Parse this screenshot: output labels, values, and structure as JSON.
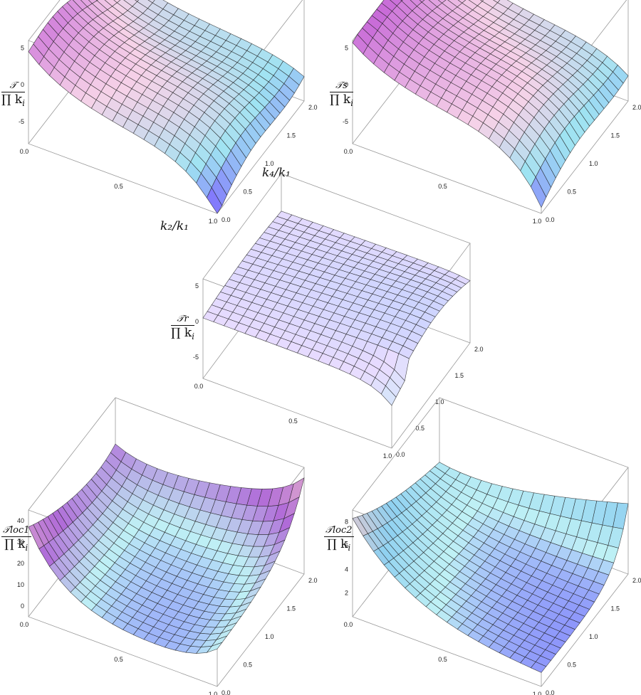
{
  "chart_data": [
    {
      "id": "T",
      "type": "surface3d",
      "zlabel_num": "𝒯",
      "zlabel_den": "∏ k",
      "zlabel_sub": "i",
      "xlabel": "k₂/k₁",
      "ylabel": "k₄/k₁",
      "x_ticks": [
        "0.0",
        "0.5",
        "1.0"
      ],
      "y_ticks": [
        "0.0",
        "0.5",
        "1.0",
        "1.5",
        "2.0"
      ],
      "z_ticks": [
        "5",
        "0",
        "-5"
      ],
      "xlim": [
        0,
        1
      ],
      "ylim": [
        0,
        2
      ],
      "zlim": [
        -8,
        6
      ],
      "colors": [
        "#7a5cff",
        "#c86bd8",
        "#9fe3f2",
        "#f6d2e8"
      ]
    },
    {
      "id": "Ts",
      "type": "surface3d",
      "zlabel_num": "𝒯s",
      "zlabel_den": "∏ k",
      "zlabel_sub": "i",
      "x_ticks": [
        "0.0",
        "0.5",
        "1.0"
      ],
      "y_ticks": [
        "0.0",
        "0.5",
        "1.0",
        "1.5",
        "2.0"
      ],
      "z_ticks": [
        "5",
        "0",
        "-5"
      ],
      "xlim": [
        0,
        1
      ],
      "ylim": [
        0,
        2
      ],
      "zlim": [
        -8,
        6
      ],
      "colors": [
        "#7a5cff",
        "#c86bd8",
        "#9fe3f2",
        "#f6d2e8"
      ]
    },
    {
      "id": "Tr",
      "type": "surface3d",
      "zlabel_num": "𝒯r",
      "zlabel_den": "∏ k",
      "zlabel_sub": "i",
      "x_ticks": [
        "0.0",
        "0.5",
        "1.0"
      ],
      "y_ticks": [
        "0.0",
        "0.5",
        "1.0",
        "1.5",
        "2.0"
      ],
      "z_ticks": [
        "5",
        "0",
        "-5"
      ],
      "xlim": [
        0,
        1
      ],
      "ylim": [
        0,
        2
      ],
      "zlim": [
        -8,
        6
      ],
      "colors": [
        "#6a63ff",
        "#9ec8ff",
        "#bff1f5",
        "#e9dcff"
      ]
    },
    {
      "id": "Tloc1",
      "type": "surface3d",
      "zlabel_num": "𝒯loc1",
      "zlabel_den": "∏ k",
      "zlabel_sub": "i",
      "x_ticks": [
        "0.0",
        "0.5",
        "1.0"
      ],
      "y_ticks": [
        "0.0",
        "0.5",
        "1.0",
        "1.5",
        "2.0"
      ],
      "z_ticks": [
        "40",
        "30",
        "20",
        "10",
        "0"
      ],
      "xlim": [
        0,
        1
      ],
      "ylim": [
        0,
        2
      ],
      "zlim": [
        -5,
        45
      ],
      "colors": [
        "#6a55ff",
        "#f3c5c8",
        "#bff1f5",
        "#b06bd8"
      ]
    },
    {
      "id": "Tloc2",
      "type": "surface3d",
      "zlabel_num": "𝒯loc2",
      "zlabel_den": "∏ k",
      "zlabel_sub": "i",
      "x_ticks": [
        "0.0",
        "0.5",
        "1.0"
      ],
      "y_ticks": [
        "0.0",
        "0.5",
        "1.0",
        "1.5",
        "2.0"
      ],
      "z_ticks": [
        "8",
        "6",
        "4",
        "2"
      ],
      "xlim": [
        0,
        1
      ],
      "ylim": [
        0,
        2
      ],
      "zlim": [
        0,
        9
      ],
      "colors": [
        "#6a55ff",
        "#f3c5c8",
        "#bff1f5",
        "#8fd0f0"
      ]
    }
  ]
}
